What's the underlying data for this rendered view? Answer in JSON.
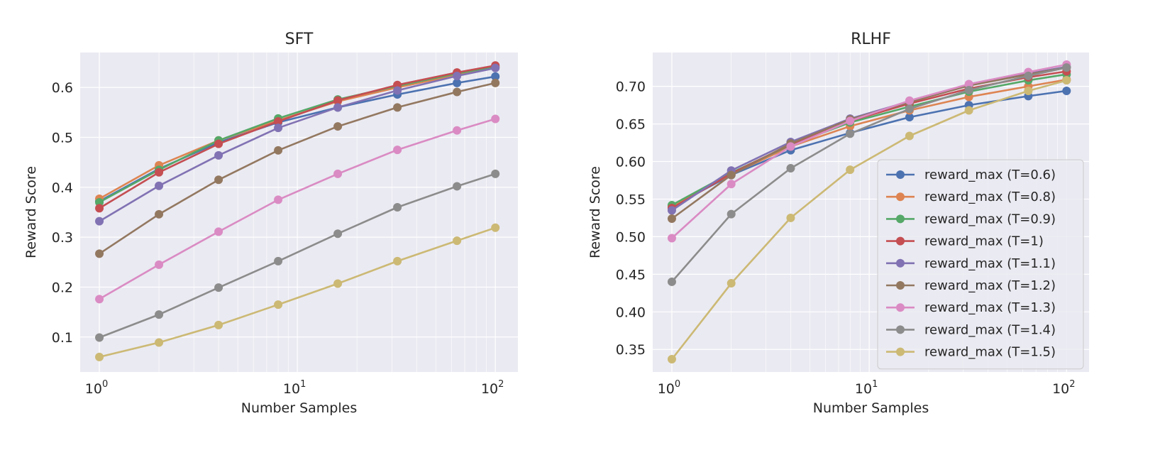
{
  "chart_data": [
    {
      "type": "line",
      "title": "SFT",
      "xlabel": "Number Samples",
      "ylabel": "Reward Score",
      "xscale": "log",
      "x": [
        1,
        2,
        4,
        8,
        16,
        32,
        64,
        100
      ],
      "xlim": [
        0.8,
        130
      ],
      "ylim": [
        0.03,
        0.67
      ],
      "xticks": [
        {
          "base": "10",
          "exp": "0",
          "value": 1
        },
        {
          "base": "10",
          "exp": "1",
          "value": 10
        },
        {
          "base": "10",
          "exp": "2",
          "value": 100
        }
      ],
      "yticks": [
        {
          "value": 0.1,
          "label": "0.1"
        },
        {
          "value": 0.2,
          "label": "0.2"
        },
        {
          "value": 0.3,
          "label": "0.3"
        },
        {
          "value": 0.4,
          "label": "0.4"
        },
        {
          "value": 0.5,
          "label": "0.5"
        },
        {
          "value": 0.6,
          "label": "0.6"
        }
      ],
      "grid": true,
      "legend": null,
      "series": [
        {
          "name": "reward_max (T=0.6)",
          "color": "#4c72b0",
          "values": [
            0.372,
            0.437,
            0.49,
            0.53,
            0.56,
            0.586,
            0.609,
            0.622
          ]
        },
        {
          "name": "reward_max (T=0.8)",
          "color": "#dd8452",
          "values": [
            0.377,
            0.444,
            0.494,
            0.534,
            0.572,
            0.6,
            0.625,
            0.64
          ]
        },
        {
          "name": "reward_max (T=0.9)",
          "color": "#55a868",
          "values": [
            0.37,
            0.435,
            0.494,
            0.538,
            0.576,
            0.603,
            0.628,
            0.642
          ]
        },
        {
          "name": "reward_max (T=1)",
          "color": "#c44e52",
          "values": [
            0.358,
            0.43,
            0.487,
            0.532,
            0.574,
            0.605,
            0.63,
            0.644
          ]
        },
        {
          "name": "reward_max (T=1.1)",
          "color": "#8172b3",
          "values": [
            0.332,
            0.403,
            0.464,
            0.519,
            0.56,
            0.594,
            0.623,
            0.639
          ]
        },
        {
          "name": "reward_max (T=1.2)",
          "color": "#937860",
          "values": [
            0.267,
            0.346,
            0.415,
            0.474,
            0.522,
            0.56,
            0.591,
            0.609
          ]
        },
        {
          "name": "reward_max (T=1.3)",
          "color": "#da8bc3",
          "values": [
            0.176,
            0.245,
            0.311,
            0.375,
            0.427,
            0.475,
            0.514,
            0.537
          ]
        },
        {
          "name": "reward_max (T=1.4)",
          "color": "#8c8c8c",
          "values": [
            0.099,
            0.145,
            0.199,
            0.252,
            0.307,
            0.36,
            0.402,
            0.427
          ]
        },
        {
          "name": "reward_max (T=1.5)",
          "color": "#ccb974",
          "values": [
            0.06,
            0.089,
            0.124,
            0.165,
            0.207,
            0.252,
            0.293,
            0.319
          ]
        }
      ]
    },
    {
      "type": "line",
      "title": "RLHF",
      "xlabel": "Number Samples",
      "ylabel": "Reward Score",
      "xscale": "log",
      "x": [
        1,
        2,
        4,
        8,
        16,
        32,
        64,
        100
      ],
      "xlim": [
        0.8,
        130
      ],
      "ylim": [
        0.32,
        0.745
      ],
      "xticks": [
        {
          "base": "10",
          "exp": "0",
          "value": 1
        },
        {
          "base": "10",
          "exp": "1",
          "value": 10
        },
        {
          "base": "10",
          "exp": "2",
          "value": 100
        }
      ],
      "yticks": [
        {
          "value": 0.35,
          "label": "0.35"
        },
        {
          "value": 0.4,
          "label": "0.40"
        },
        {
          "value": 0.45,
          "label": "0.45"
        },
        {
          "value": 0.5,
          "label": "0.50"
        },
        {
          "value": 0.55,
          "label": "0.55"
        },
        {
          "value": 0.6,
          "label": "0.60"
        },
        {
          "value": 0.65,
          "label": "0.65"
        },
        {
          "value": 0.7,
          "label": "0.70"
        }
      ],
      "grid": true,
      "legend": "center-right",
      "series": [
        {
          "name": "reward_max (T=0.6)",
          "color": "#4c72b0",
          "values": [
            0.54,
            0.582,
            0.615,
            0.638,
            0.659,
            0.675,
            0.687,
            0.694
          ]
        },
        {
          "name": "reward_max (T=0.8)",
          "color": "#dd8452",
          "values": [
            0.541,
            0.583,
            0.62,
            0.647,
            0.668,
            0.686,
            0.7,
            0.709
          ]
        },
        {
          "name": "reward_max (T=0.9)",
          "color": "#55a868",
          "values": [
            0.542,
            0.585,
            0.622,
            0.652,
            0.673,
            0.693,
            0.708,
            0.716
          ]
        },
        {
          "name": "reward_max (T=1)",
          "color": "#c44e52",
          "values": [
            0.538,
            0.584,
            0.623,
            0.654,
            0.677,
            0.697,
            0.712,
            0.72
          ]
        },
        {
          "name": "reward_max (T=1.1)",
          "color": "#8172b3",
          "values": [
            0.535,
            0.588,
            0.626,
            0.657,
            0.68,
            0.701,
            0.717,
            0.726
          ]
        },
        {
          "name": "reward_max (T=1.2)",
          "color": "#937860",
          "values": [
            0.524,
            0.582,
            0.624,
            0.656,
            0.679,
            0.701,
            0.716,
            0.725
          ]
        },
        {
          "name": "reward_max (T=1.3)",
          "color": "#da8bc3",
          "values": [
            0.498,
            0.57,
            0.62,
            0.654,
            0.681,
            0.703,
            0.719,
            0.729
          ]
        },
        {
          "name": "reward_max (T=1.4)",
          "color": "#8c8c8c",
          "values": [
            0.44,
            0.53,
            0.591,
            0.637,
            0.67,
            0.695,
            0.714,
            0.725
          ]
        },
        {
          "name": "reward_max (T=1.5)",
          "color": "#ccb974",
          "values": [
            0.337,
            0.438,
            0.525,
            0.589,
            0.634,
            0.668,
            0.694,
            0.708
          ]
        }
      ]
    }
  ]
}
